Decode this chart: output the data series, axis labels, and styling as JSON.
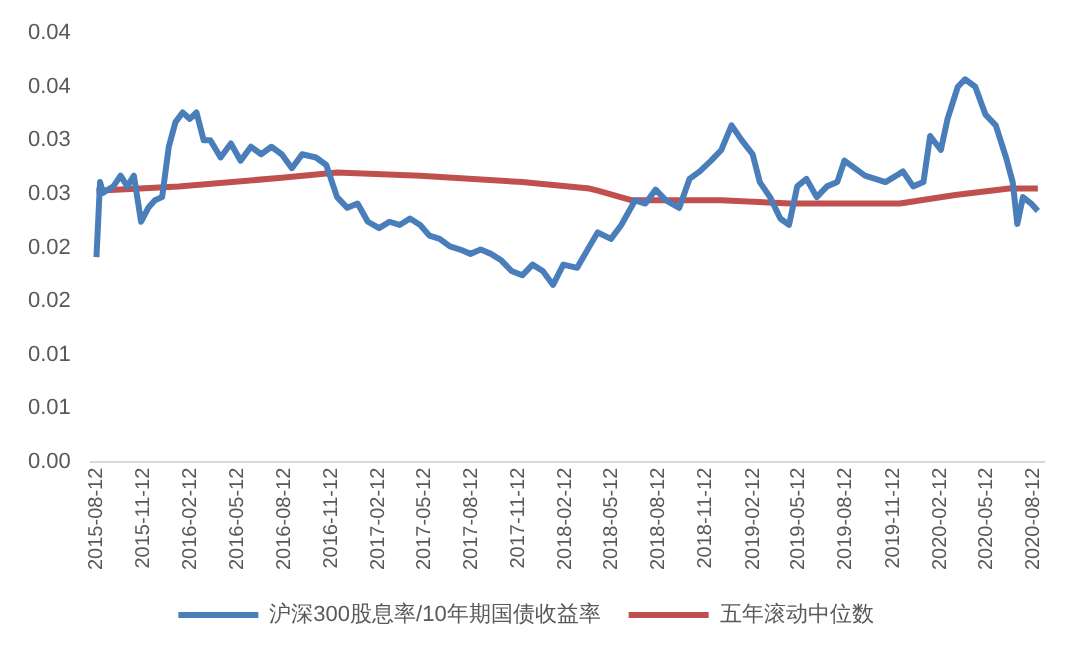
{
  "chart_data": {
    "type": "line",
    "xlim": [
      "2015-08-01",
      "2020-09-01"
    ],
    "ylim": [
      0,
      0.04
    ],
    "xticks": [
      "2015-08-12",
      "2015-11-12",
      "2016-02-12",
      "2016-05-12",
      "2016-08-12",
      "2016-11-12",
      "2017-02-12",
      "2017-05-12",
      "2017-08-12",
      "2017-11-12",
      "2018-02-12",
      "2018-05-12",
      "2018-08-12",
      "2018-11-12",
      "2019-02-12",
      "2019-05-12",
      "2019-08-12",
      "2019-11-12",
      "2020-02-12",
      "2020-05-12",
      "2020-08-12"
    ],
    "yticks": [
      {
        "value": 0,
        "label": "0.00"
      },
      {
        "value": 0.005,
        "label": "0.01"
      },
      0.01,
      {
        "value": 0.015,
        "label": "0.02"
      },
      0.02,
      {
        "value": 0.025,
        "label": "0.03"
      },
      0.03,
      {
        "value": 0.035,
        "label": "0.04"
      },
      0.04
    ],
    "grid": false,
    "legend": "bottom",
    "line_style": "solid",
    "marker": "none",
    "series": [
      {
        "name": "沪深300股息率/10年期国债收益率",
        "color": "#4a7ebb",
        "x": [
          "2015-08-12",
          "2015-08-19",
          "2015-08-25",
          "2015-09-14",
          "2015-09-28",
          "2015-10-11",
          "2015-10-24",
          "2015-11-07",
          "2015-11-21",
          "2015-12-04",
          "2015-12-18",
          "2015-12-31",
          "2016-01-13",
          "2016-01-27",
          "2016-02-10",
          "2016-02-23",
          "2016-03-08",
          "2016-03-21",
          "2016-04-10",
          "2016-04-30",
          "2016-05-19",
          "2016-06-08",
          "2016-06-28",
          "2016-07-18",
          "2016-08-07",
          "2016-08-27",
          "2016-09-16",
          "2016-10-13",
          "2016-11-02",
          "2016-11-23",
          "2016-12-13",
          "2017-01-02",
          "2017-01-22",
          "2017-02-13",
          "2017-03-05",
          "2017-03-25",
          "2017-04-14",
          "2017-05-04",
          "2017-05-22",
          "2017-06-11",
          "2017-07-01",
          "2017-07-21",
          "2017-08-10",
          "2017-08-30",
          "2017-09-19",
          "2017-10-09",
          "2017-10-29",
          "2017-11-19",
          "2017-12-09",
          "2017-12-29",
          "2018-01-18",
          "2018-02-07",
          "2018-03-06",
          "2018-03-30",
          "2018-04-15",
          "2018-05-11",
          "2018-05-31",
          "2018-06-27",
          "2018-07-17",
          "2018-08-06",
          "2018-08-26",
          "2018-09-21",
          "2018-10-11",
          "2018-10-31",
          "2018-11-22",
          "2018-12-12",
          "2019-01-01",
          "2019-01-21",
          "2019-02-11",
          "2019-02-25",
          "2019-03-17",
          "2019-04-06",
          "2019-04-23",
          "2019-05-09",
          "2019-05-27",
          "2019-06-16",
          "2019-07-06",
          "2019-07-26",
          "2019-08-09",
          "2019-08-29",
          "2019-09-18",
          "2019-10-08",
          "2019-10-28",
          "2019-11-18",
          "2019-12-01",
          "2019-12-21",
          "2020-01-10",
          "2020-01-23",
          "2020-02-13",
          "2020-02-26",
          "2020-03-17",
          "2020-03-31",
          "2020-04-20",
          "2020-05-10",
          "2020-05-30",
          "2020-06-19",
          "2020-07-02",
          "2020-07-11",
          "2020-07-22",
          "2020-08-07",
          "2020-08-20"
        ],
        "values": [
          0.0191,
          0.0261,
          0.0251,
          0.0257,
          0.0267,
          0.0257,
          0.0267,
          0.0224,
          0.0237,
          0.0244,
          0.0247,
          0.0294,
          0.0317,
          0.0326,
          0.032,
          0.0326,
          0.03,
          0.03,
          0.0284,
          0.0297,
          0.0281,
          0.0294,
          0.0287,
          0.0294,
          0.0287,
          0.0274,
          0.0287,
          0.0284,
          0.0277,
          0.0247,
          0.0237,
          0.0241,
          0.0224,
          0.0218,
          0.0224,
          0.0221,
          0.0227,
          0.0221,
          0.0211,
          0.0208,
          0.0201,
          0.0198,
          0.0194,
          0.0198,
          0.0194,
          0.0188,
          0.0178,
          0.0174,
          0.0184,
          0.0178,
          0.0165,
          0.0184,
          0.0181,
          0.0201,
          0.0214,
          0.0208,
          0.0221,
          0.0244,
          0.0241,
          0.0254,
          0.0244,
          0.0237,
          0.0264,
          0.0271,
          0.0281,
          0.0291,
          0.0314,
          0.03,
          0.0287,
          0.0261,
          0.0247,
          0.0227,
          0.0221,
          0.0257,
          0.0264,
          0.0247,
          0.0257,
          0.0261,
          0.0281,
          0.0274,
          0.0267,
          0.0264,
          0.0261,
          0.0267,
          0.0271,
          0.0257,
          0.0261,
          0.0304,
          0.0291,
          0.032,
          0.035,
          0.0357,
          0.035,
          0.0324,
          0.0314,
          0.0284,
          0.0261,
          0.0222,
          0.0247,
          0.0241,
          0.0234
        ]
      },
      {
        "name": "五年滚动中位数",
        "color": "#c0504d",
        "x": [
          "2015-08-12",
          "2016-01-19",
          "2016-08-07",
          "2016-11-23",
          "2017-05-04",
          "2017-11-19",
          "2018-03-30",
          "2018-04-15",
          "2018-06-21",
          "2018-12-12",
          "2019-04-27",
          "2019-11-25",
          "2020-03-12",
          "2020-06-25",
          "2020-08-20"
        ],
        "values": [
          0.0253,
          0.0257,
          0.0265,
          0.027,
          0.0267,
          0.0261,
          0.0255,
          0.0253,
          0.0244,
          0.0244,
          0.0241,
          0.0241,
          0.0249,
          0.0255,
          0.0255
        ]
      }
    ]
  }
}
